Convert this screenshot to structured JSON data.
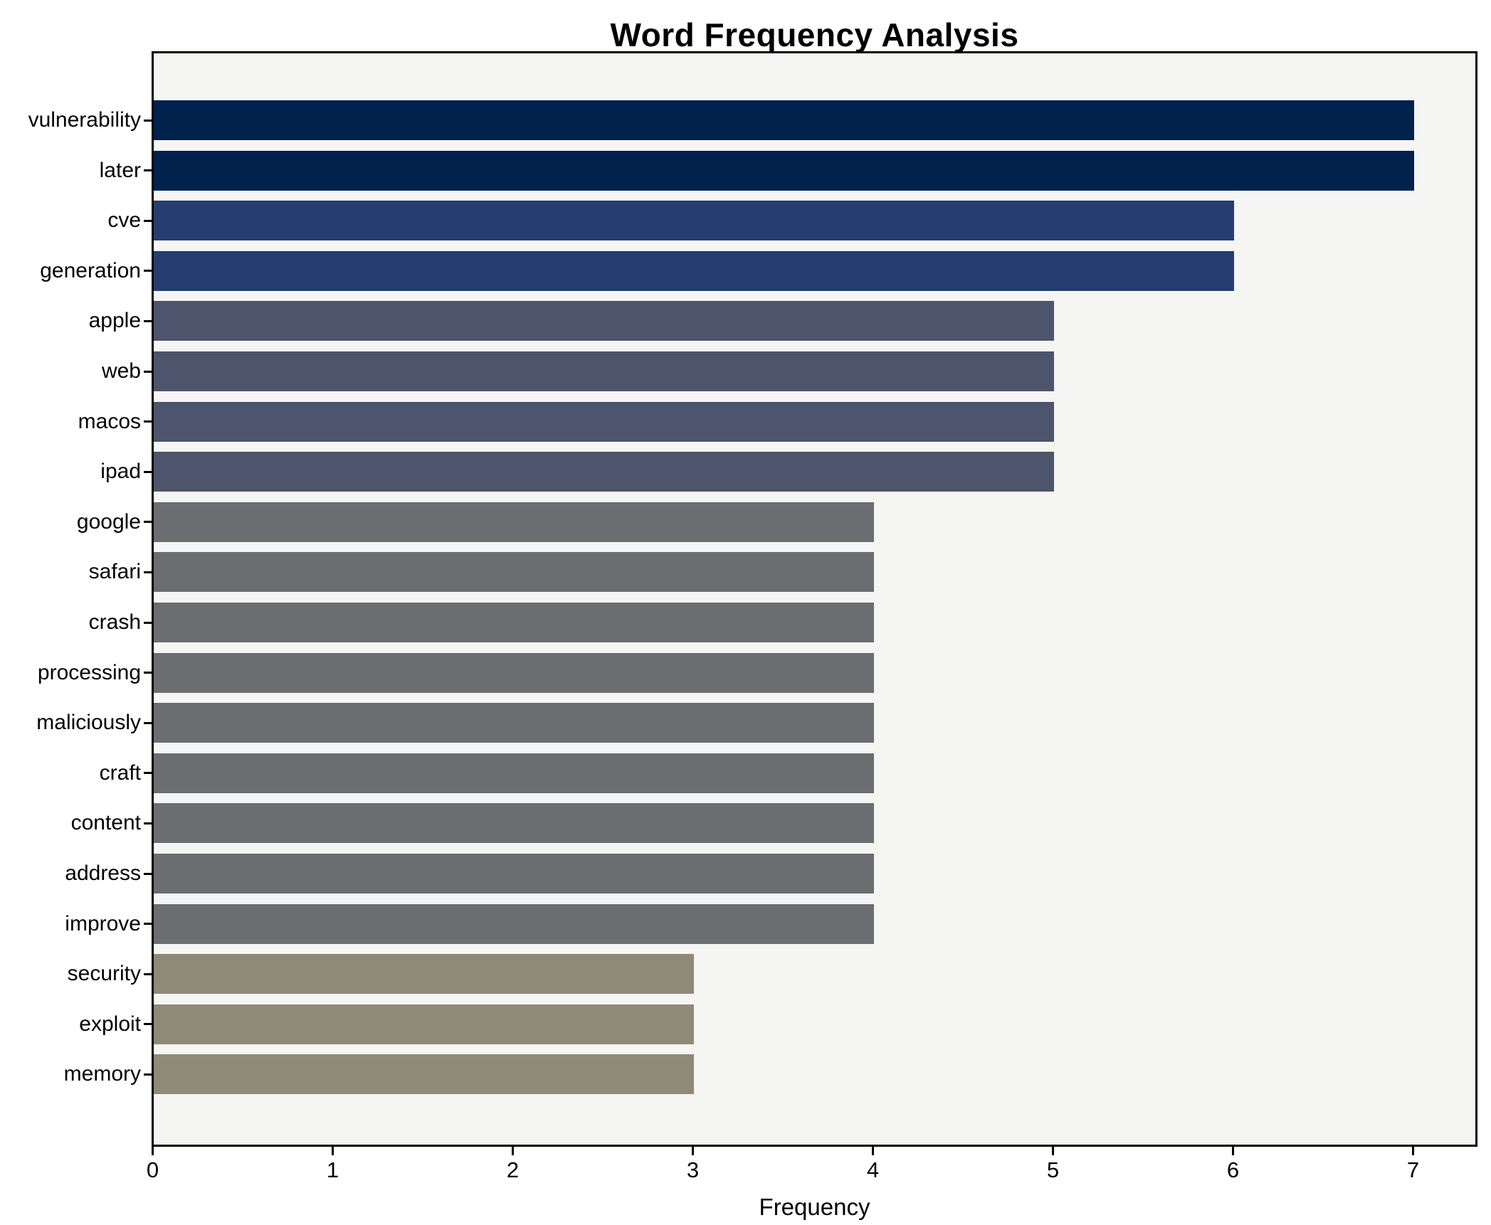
{
  "chart_data": {
    "type": "bar",
    "orientation": "horizontal",
    "title": "Word Frequency Analysis",
    "xlabel": "Frequency",
    "ylabel": "",
    "categories": [
      "vulnerability",
      "later",
      "cve",
      "generation",
      "apple",
      "web",
      "macos",
      "ipad",
      "google",
      "safari",
      "crash",
      "processing",
      "maliciously",
      "craft",
      "content",
      "address",
      "improve",
      "security",
      "exploit",
      "memory"
    ],
    "values": [
      7,
      7,
      6,
      6,
      5,
      5,
      5,
      5,
      4,
      4,
      4,
      4,
      4,
      4,
      4,
      4,
      4,
      3,
      3,
      3
    ],
    "bar_colors": [
      "#01224d",
      "#01224d",
      "#253d6f",
      "#253d6f",
      "#4c556c",
      "#4c556c",
      "#4c556c",
      "#4c556c",
      "#6b6d71",
      "#6b6d71",
      "#6b6d71",
      "#6b6d71",
      "#6b6d71",
      "#6b6d71",
      "#6b6d71",
      "#6b6d71",
      "#6b6d71",
      "#8f8a78",
      "#8f8a78",
      "#8f8a78"
    ],
    "value_color_map": {
      "7": "#01224d",
      "6": "#253d6f",
      "5": "#4c556c",
      "4": "#6b6d71",
      "3": "#8f8a78"
    },
    "xticks": [
      0,
      1,
      2,
      3,
      4,
      5,
      6,
      7
    ],
    "xlim": [
      0,
      7.34
    ],
    "grid": false,
    "legend": null,
    "plot_background": "#f5f5f3",
    "figure_background": "#ffffff",
    "spine_color": "#000000"
  }
}
